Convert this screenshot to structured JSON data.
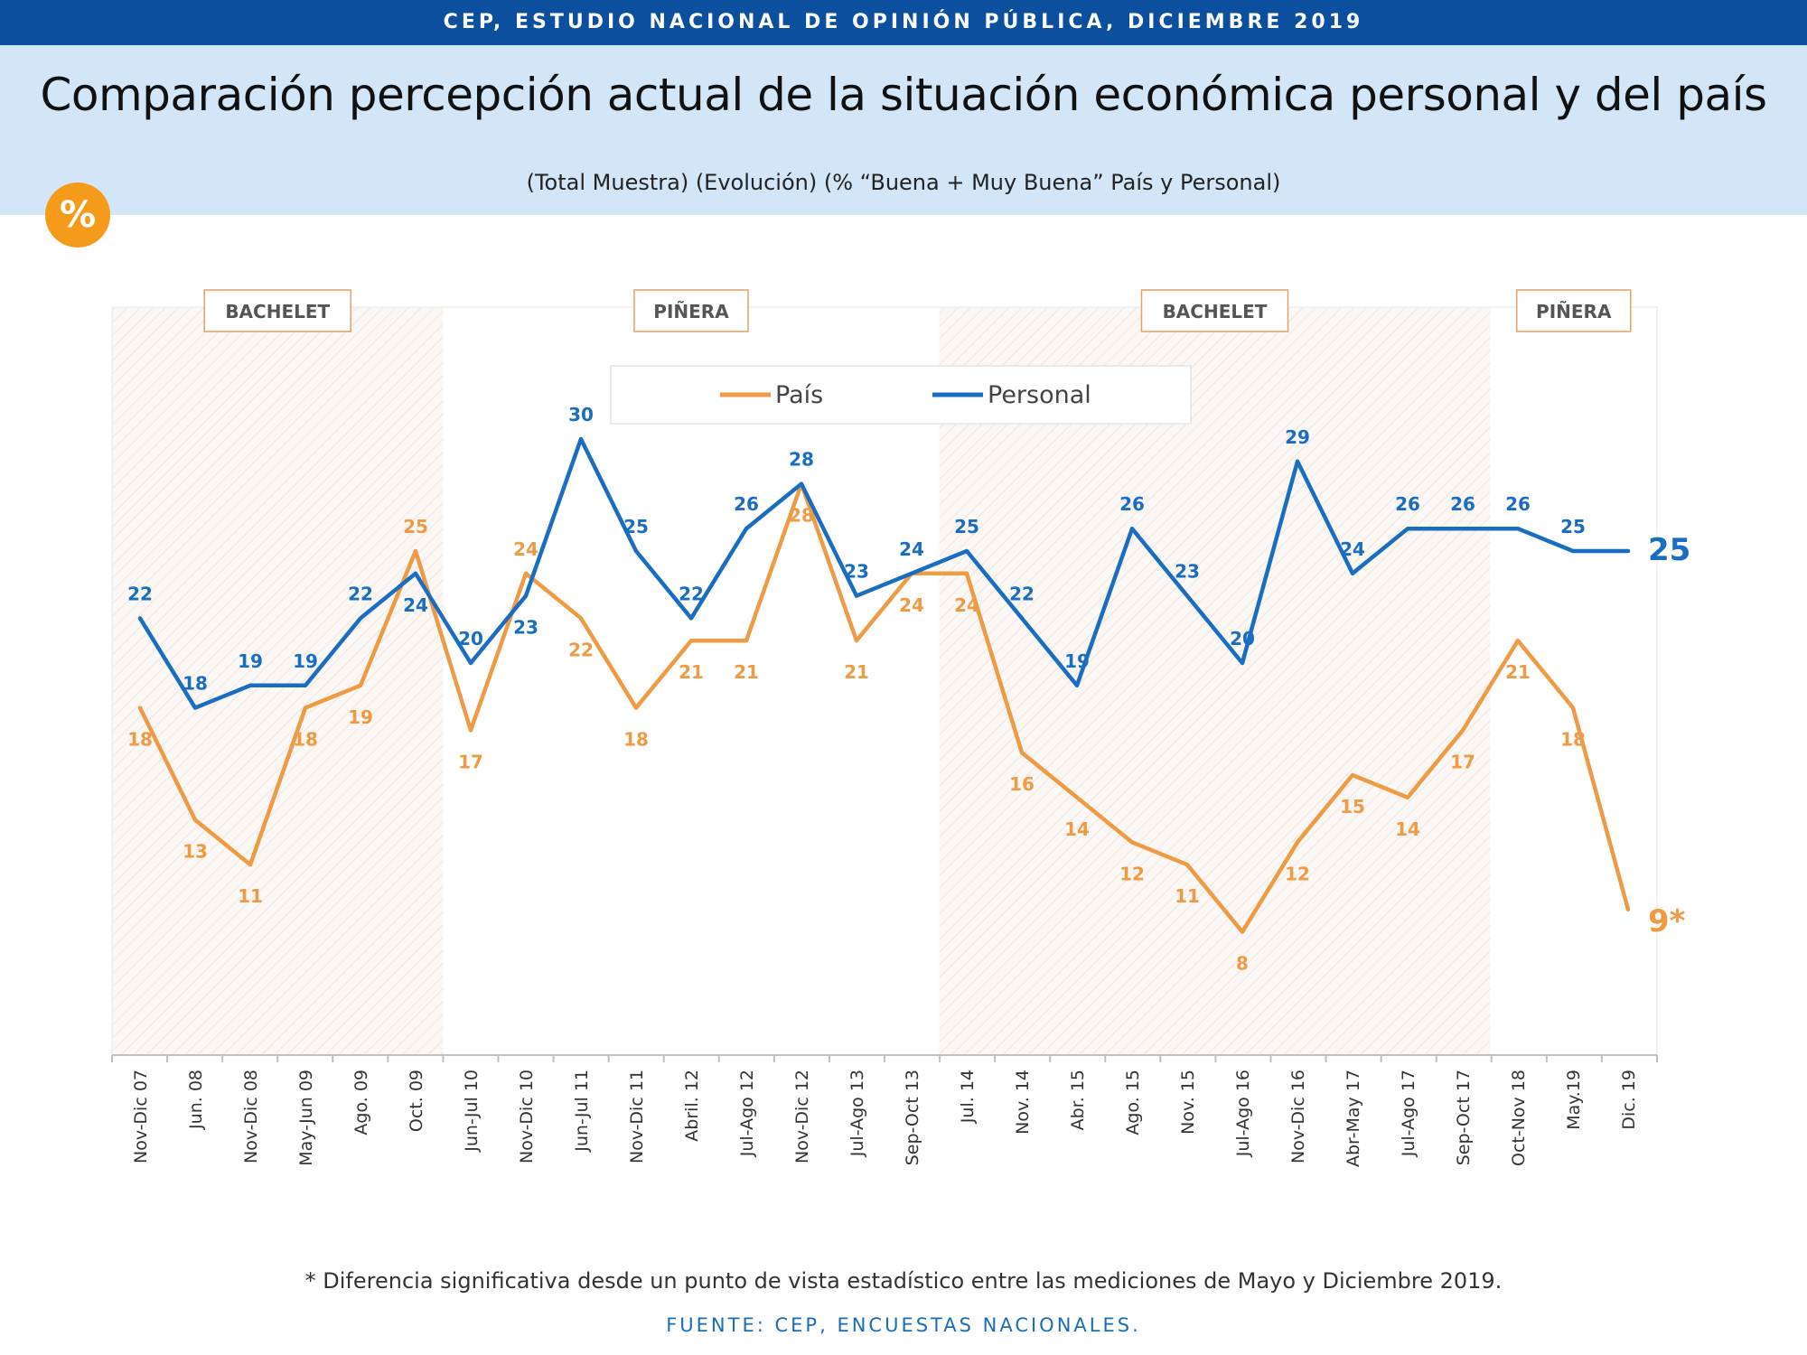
{
  "header": {
    "banner": "CEP, ESTUDIO NACIONAL DE OPINIÓN PÚBLICA, DICIEMBRE 2019",
    "title": "Comparación percepción actual de la situación económica personal y del país",
    "subtitle": "(Total Muestra) (Evolución) (% “Buena + Muy Buena” País y Personal)",
    "badge": "%"
  },
  "colors": {
    "pais": "#ef9a45",
    "personal": "#1b6dc1",
    "banner": "#0b4f9e",
    "header_band": "#d3e6f7",
    "badge": "#f59b1c"
  },
  "chart_data": {
    "type": "line",
    "categories": [
      "Nov-Dic 07",
      "Jun. 08",
      "Nov-Dic 08",
      "May-Jun 09",
      "Ago. 09",
      "Oct. 09",
      "Jun-Jul 10",
      "Nov-Dic 10",
      "Jun-Jul 11",
      "Nov-Dic 11",
      "Abril. 12",
      "Jul-Ago 12",
      "Nov-Dic 12",
      "Jul-Ago 13",
      "Sep-Oct 13",
      "Jul. 14",
      "Nov. 14",
      "Abr. 15",
      "Ago. 15",
      "Nov. 15",
      "Jul-Ago 16",
      "Nov-Dic 16",
      "Abr-May 17",
      "Jul-Ago 17",
      "Sep-Oct 17",
      "Oct-Nov 18",
      "May.19",
      "Dic. 19"
    ],
    "series": [
      {
        "name": "País",
        "values": [
          18,
          13,
          11,
          18,
          19,
          25,
          17,
          24,
          22,
          18,
          21,
          21,
          28,
          21,
          24,
          24,
          16,
          14,
          12,
          11,
          8,
          12,
          15,
          14,
          17,
          21,
          18,
          9
        ]
      },
      {
        "name": "Personal",
        "values": [
          22,
          18,
          19,
          19,
          22,
          24,
          20,
          23,
          30,
          25,
          22,
          26,
          28,
          23,
          24,
          25,
          22,
          19,
          26,
          23,
          20,
          29,
          24,
          26,
          26,
          26,
          25,
          25
        ]
      }
    ],
    "last_labels": {
      "País": "9*",
      "Personal": "25"
    },
    "periods": [
      {
        "label": "BACHELET",
        "from": "Nov-Dic 07",
        "to": "Oct. 09",
        "shaded": true
      },
      {
        "label": "PIÑERA",
        "from": "Jun-Jul 10",
        "to": "Sep-Oct 13",
        "shaded": false
      },
      {
        "label": "BACHELET",
        "from": "Jul. 14",
        "to": "Sep-Oct 17",
        "shaded": true
      },
      {
        "label": "PIÑERA",
        "from": "Oct-Nov 18",
        "to": "Dic. 19",
        "shaded": false
      }
    ],
    "legend": {
      "position": "top-center",
      "entries": [
        "País",
        "Personal"
      ]
    },
    "xlabel": "",
    "ylabel": "",
    "grid": false
  },
  "footer": {
    "footnote": "* Diferencia significativa desde un punto de vista estadístico entre las mediciones de Mayo y Diciembre 2019.",
    "source": "FUENTE: CEP, ENCUESTAS NACIONALES."
  }
}
